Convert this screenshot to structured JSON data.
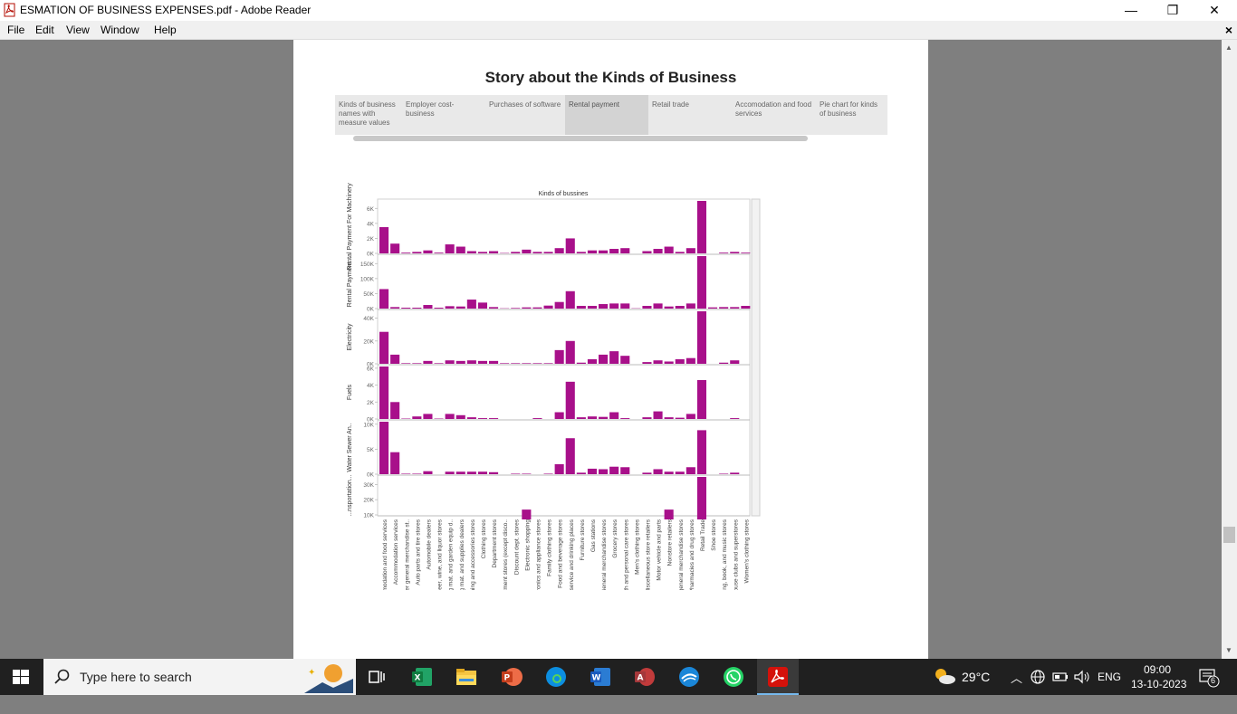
{
  "window": {
    "title": "ESMATION OF BUSINESS EXPENSES.pdf - Adobe Reader",
    "minimize": "—",
    "restore": "❐",
    "close": "✕"
  },
  "menu": {
    "items": [
      "File",
      "Edit",
      "View",
      "Window",
      "Help"
    ],
    "close_doc": "×"
  },
  "story": {
    "title": "Story about the Kinds of Business",
    "tabs": [
      {
        "label": "Kinds of business names with measure values",
        "active": false
      },
      {
        "label": "Employer cost-business",
        "active": false
      },
      {
        "label": "Purchases of software",
        "active": false
      },
      {
        "label": "Rental payment",
        "active": true
      },
      {
        "label": "Retail trade",
        "active": false
      },
      {
        "label": "Accomodation and food services",
        "active": false
      },
      {
        "label": "Pie chart for kinds of business",
        "active": false
      }
    ]
  },
  "chart_data": {
    "type": "bar",
    "title": "Kinds of bussines",
    "color": "#a8108a",
    "categories": [
      "Accommodation and food services",
      "Accommodation services",
      "All other general merchandise st..",
      "Auto parts and tire stores",
      "Automobile dealers",
      "Beer, wine, and liquor stores",
      "Building mat. and garden equip d..",
      "Building mat. and supplies dealers",
      "Clothing and accessories stores",
      "Clothing stores",
      "Department stores",
      "Department stores (except disco..",
      "Discount dept. stores",
      "Electronic shopping",
      "Electronics and appliance stores",
      "Family clothing stores",
      "Food and beverage stores",
      "Food service and drinking places",
      "Furniture stores",
      "Gas stations",
      "General merchandise stores",
      "Grocery stores",
      "Health and personal care stores",
      "Men's clothing stores",
      "Miscellaneous store retailers",
      "Motor vehicle and parts",
      "Nonstore retailers",
      "Other general merchandise stores",
      "Pharmacies and drug stores",
      "Retail Trade",
      "Shoe stores",
      "Sporting, book, and music stores",
      "Warehouse clubs and superstores",
      "Women's clothing stores"
    ],
    "series": [
      {
        "name": "Rental Payment For Machinery",
        "ticks": [
          "6K",
          "4K",
          "2K",
          "0K"
        ],
        "tick_values": [
          6000,
          4000,
          2000,
          0
        ],
        "ylim": [
          0,
          7000
        ],
        "values": [
          3500,
          1300,
          100,
          200,
          400,
          100,
          1200,
          900,
          300,
          200,
          300,
          50,
          200,
          500,
          200,
          200,
          700,
          2000,
          200,
          400,
          400,
          600,
          700,
          0,
          300,
          600,
          900,
          200,
          700,
          7000,
          0,
          100,
          200,
          100
        ]
      },
      {
        "name": "Rental Payment...",
        "ticks": [
          "150K",
          "100K",
          "50K",
          "0K"
        ],
        "tick_values": [
          150000,
          100000,
          50000,
          0
        ],
        "ylim": [
          0,
          175000
        ],
        "values": [
          65000,
          5000,
          3000,
          3000,
          12000,
          3000,
          8000,
          7000,
          30000,
          20000,
          5000,
          1000,
          2000,
          4000,
          4000,
          10000,
          22000,
          58000,
          9000,
          9000,
          15000,
          17000,
          17000,
          1000,
          9000,
          17000,
          7000,
          9000,
          17000,
          175000,
          4000,
          5000,
          5000,
          9000
        ]
      },
      {
        "name": "Electricity",
        "ticks": [
          "40K",
          "20K",
          "0K"
        ],
        "tick_values": [
          40000,
          20000,
          0
        ],
        "ylim": [
          0,
          46000
        ],
        "values": [
          28000,
          8000,
          500,
          500,
          2500,
          500,
          3000,
          2500,
          3000,
          2500,
          2500,
          500,
          500,
          500,
          500,
          500,
          12000,
          20000,
          1000,
          4000,
          8000,
          11000,
          7000,
          0,
          1500,
          3000,
          2000,
          4000,
          5000,
          46000,
          0,
          1000,
          3000,
          0
        ]
      },
      {
        "name": "Fuels",
        "ticks": [
          "6K",
          "4K",
          "2K",
          "0K"
        ],
        "tick_values": [
          6000,
          4000,
          2000,
          0
        ],
        "ylim": [
          0,
          6200
        ],
        "values": [
          6200,
          2000,
          50,
          300,
          600,
          50,
          600,
          450,
          200,
          100,
          100,
          0,
          0,
          0,
          100,
          0,
          800,
          4400,
          200,
          300,
          250,
          800,
          100,
          0,
          200,
          900,
          200,
          150,
          600,
          4600,
          0,
          0,
          100,
          0
        ]
      },
      {
        "name": "Water Sewer An..",
        "ticks": [
          "10K",
          "5K",
          "0K"
        ],
        "tick_values": [
          10000,
          5000,
          0
        ],
        "ylim": [
          0,
          10500
        ],
        "values": [
          10500,
          4400,
          100,
          100,
          600,
          0,
          500,
          500,
          500,
          500,
          400,
          0,
          100,
          100,
          0,
          100,
          2000,
          7200,
          300,
          1100,
          1000,
          1500,
          1400,
          0,
          300,
          1000,
          500,
          500,
          1400,
          8800,
          0,
          100,
          300,
          0
        ]
      },
      {
        "name": "...nsportation...",
        "ticks": [
          "30K",
          "20K",
          "10K"
        ],
        "tick_values": [
          30000,
          20000,
          10000
        ],
        "ylim": [
          10000,
          35000
        ],
        "values": [
          0,
          0,
          0,
          0,
          0,
          0,
          0,
          0,
          0,
          0,
          0,
          0,
          0,
          13500,
          0,
          0,
          0,
          0,
          0,
          0,
          0,
          0,
          0,
          0,
          0,
          0,
          13500,
          0,
          0,
          35000,
          0,
          0,
          0,
          0
        ]
      }
    ]
  },
  "taskbar": {
    "search_placeholder": "Type here to search",
    "apps": [
      "task-view",
      "excel",
      "file-explorer",
      "powerpoint",
      "edge",
      "word",
      "access",
      "feedback",
      "whatsapp",
      "adobe-reader"
    ],
    "weather": "29°C",
    "language": "ENG",
    "time": "09:00",
    "date": "13-10-2023",
    "notifications": "6"
  }
}
